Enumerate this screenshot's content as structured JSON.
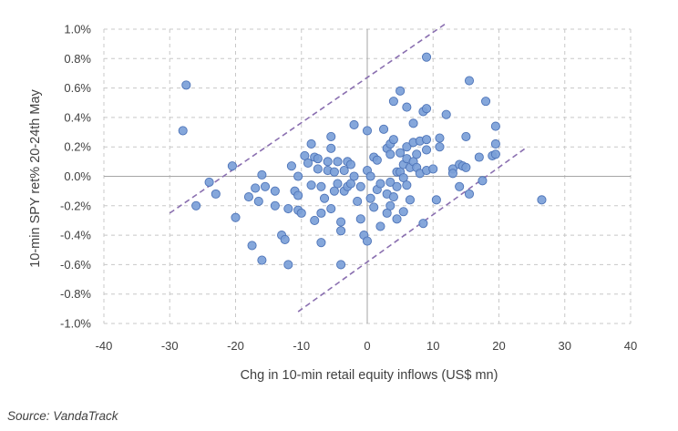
{
  "chart_data": {
    "type": "scatter",
    "title": "",
    "xlabel": "Chg in 10-min retail equity inflows (US$ mn)",
    "ylabel": "10-min SPY ret% 20-24th May",
    "xlim": [
      -40,
      40
    ],
    "ylim": [
      -1.0,
      1.0
    ],
    "x_ticks": [
      "-40",
      "-30",
      "-20",
      "-10",
      "0",
      "10",
      "20",
      "30",
      "40"
    ],
    "y_ticks": [
      "-1.0%",
      "-0.8%",
      "-0.6%",
      "-0.4%",
      "-0.2%",
      "0.0%",
      "0.2%",
      "0.4%",
      "0.6%",
      "0.8%",
      "1.0%"
    ],
    "grid": "dashed horizontal and vertical",
    "point_color": "#7b9fd8",
    "bound_color": "#8a6fb0",
    "bounds": [
      {
        "x": [
          -30,
          12
        ],
        "y": [
          -0.25,
          1.04
        ]
      },
      {
        "x": [
          -10.5,
          24
        ],
        "y": [
          -0.92,
          0.19
        ]
      }
    ],
    "points": [
      [
        -28,
        0.31
      ],
      [
        -27.5,
        0.62
      ],
      [
        -26,
        -0.2
      ],
      [
        -24,
        -0.04
      ],
      [
        -23,
        -0.12
      ],
      [
        -20.5,
        0.07
      ],
      [
        -20,
        -0.28
      ],
      [
        -18,
        -0.14
      ],
      [
        -17.5,
        -0.47
      ],
      [
        -17,
        -0.08
      ],
      [
        -16.5,
        -0.17
      ],
      [
        -16,
        0.01
      ],
      [
        -16,
        -0.57
      ],
      [
        -15.5,
        -0.07
      ],
      [
        -14,
        -0.1
      ],
      [
        -14,
        -0.2
      ],
      [
        -13,
        -0.4
      ],
      [
        -12.5,
        -0.43
      ],
      [
        -12,
        -0.22
      ],
      [
        -12,
        -0.6
      ],
      [
        -11.5,
        0.07
      ],
      [
        -11,
        -0.1
      ],
      [
        -10.5,
        -0.13
      ],
      [
        -10.5,
        -0.23
      ],
      [
        -10.5,
        0.0
      ],
      [
        -10,
        -0.25
      ],
      [
        -9.5,
        0.14
      ],
      [
        -9,
        0.09
      ],
      [
        -8.5,
        0.22
      ],
      [
        -8.5,
        -0.06
      ],
      [
        -8,
        -0.3
      ],
      [
        -8,
        0.13
      ],
      [
        -7.5,
        0.12
      ],
      [
        -7.5,
        0.05
      ],
      [
        -7,
        -0.25
      ],
      [
        -7,
        -0.45
      ],
      [
        -7,
        -0.07
      ],
      [
        -6.5,
        -0.15
      ],
      [
        -6,
        0.1
      ],
      [
        -6,
        0.04
      ],
      [
        -5.5,
        0.27
      ],
      [
        -5.5,
        0.19
      ],
      [
        -5.5,
        -0.22
      ],
      [
        -5,
        -0.1
      ],
      [
        -5,
        0.03
      ],
      [
        -4.5,
        0.1
      ],
      [
        -4.5,
        -0.05
      ],
      [
        -4,
        -0.31
      ],
      [
        -4,
        -0.37
      ],
      [
        -4,
        -0.6
      ],
      [
        -3.5,
        0.04
      ],
      [
        -3.5,
        -0.1
      ],
      [
        -3,
        0.1
      ],
      [
        -3,
        -0.07
      ],
      [
        -2.5,
        0.08
      ],
      [
        -2.5,
        -0.05
      ],
      [
        -2,
        0.35
      ],
      [
        -2,
        0.0
      ],
      [
        -1.5,
        -0.17
      ],
      [
        -1,
        -0.29
      ],
      [
        -1,
        -0.07
      ],
      [
        -0.5,
        -0.4
      ],
      [
        0,
        0.31
      ],
      [
        0,
        0.04
      ],
      [
        0,
        -0.44
      ],
      [
        0.5,
        0.0
      ],
      [
        0.5,
        -0.15
      ],
      [
        1,
        0.13
      ],
      [
        1,
        -0.21
      ],
      [
        1.5,
        0.11
      ],
      [
        1.5,
        -0.09
      ],
      [
        2,
        -0.34
      ],
      [
        2,
        -0.05
      ],
      [
        2.5,
        0.32
      ],
      [
        3,
        -0.12
      ],
      [
        3,
        -0.25
      ],
      [
        3,
        0.19
      ],
      [
        3.5,
        0.22
      ],
      [
        3.5,
        0.15
      ],
      [
        3.5,
        -0.04
      ],
      [
        3.5,
        -0.2
      ],
      [
        4,
        0.51
      ],
      [
        4,
        0.25
      ],
      [
        4,
        -0.14
      ],
      [
        4.5,
        0.03
      ],
      [
        4.5,
        -0.07
      ],
      [
        4.5,
        -0.29
      ],
      [
        5,
        0.58
      ],
      [
        5,
        0.16
      ],
      [
        5,
        0.03
      ],
      [
        5.5,
        0.08
      ],
      [
        5.5,
        -0.01
      ],
      [
        5.5,
        -0.24
      ],
      [
        6,
        0.47
      ],
      [
        6,
        0.2
      ],
      [
        6,
        0.12
      ],
      [
        6,
        -0.06
      ],
      [
        6.5,
        0.06
      ],
      [
        6.5,
        -0.16
      ],
      [
        7,
        0.36
      ],
      [
        7,
        0.23
      ],
      [
        7,
        0.1
      ],
      [
        7.5,
        0.15
      ],
      [
        7.5,
        0.06
      ],
      [
        8,
        0.24
      ],
      [
        8,
        0.02
      ],
      [
        8.5,
        0.44
      ],
      [
        8.5,
        -0.32
      ],
      [
        9,
        0.81
      ],
      [
        9,
        0.46
      ],
      [
        9,
        0.25
      ],
      [
        9,
        0.18
      ],
      [
        9,
        0.04
      ],
      [
        10,
        0.05
      ],
      [
        10.5,
        -0.16
      ],
      [
        11,
        0.26
      ],
      [
        11,
        0.2
      ],
      [
        12,
        0.42
      ],
      [
        13,
        0.05
      ],
      [
        13,
        0.02
      ],
      [
        14,
        0.08
      ],
      [
        14,
        -0.07
      ],
      [
        14.5,
        0.07
      ],
      [
        15,
        0.27
      ],
      [
        15,
        0.06
      ],
      [
        15.5,
        0.65
      ],
      [
        15.5,
        -0.12
      ],
      [
        17,
        0.13
      ],
      [
        17.5,
        -0.03
      ],
      [
        18,
        0.51
      ],
      [
        19,
        0.14
      ],
      [
        19.5,
        0.34
      ],
      [
        19.5,
        0.22
      ],
      [
        19.5,
        0.15
      ],
      [
        26.5,
        -0.16
      ]
    ]
  },
  "source": "Source: VandaTrack"
}
